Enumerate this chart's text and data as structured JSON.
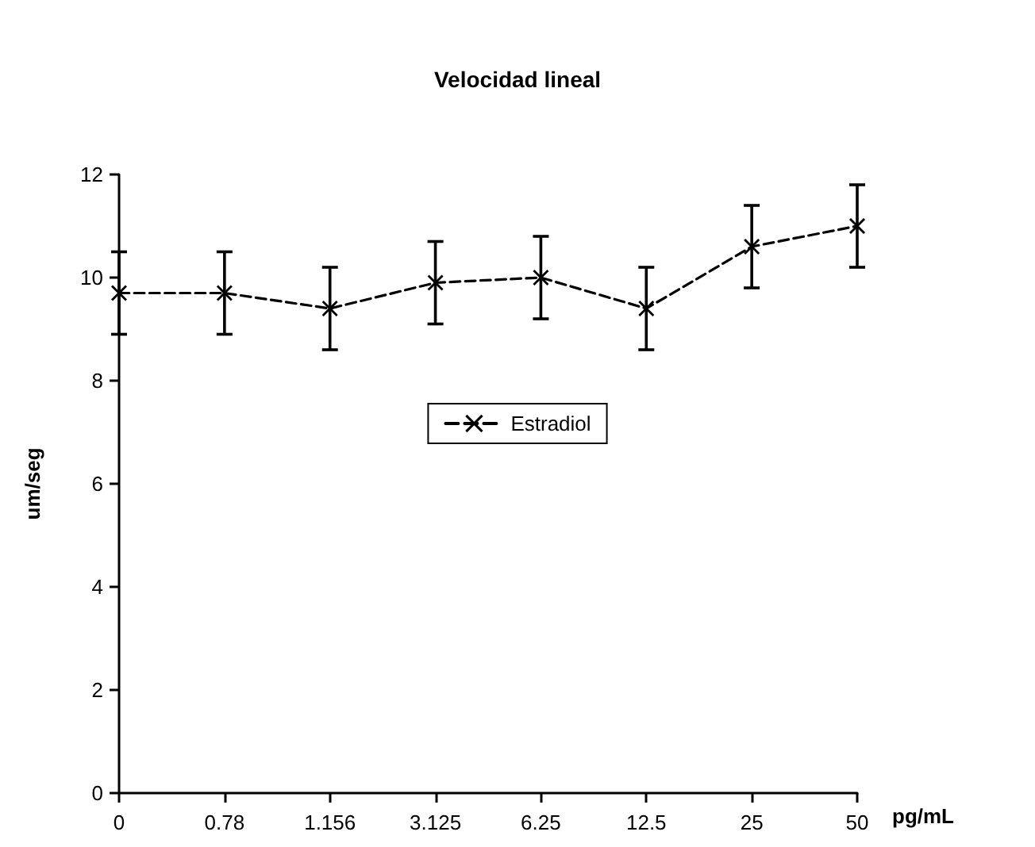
{
  "chart_data": {
    "type": "line",
    "title": "Velocidad lineal",
    "xlabel": "pg/mL",
    "ylabel": "um/seg",
    "categories": [
      "0",
      "0.78",
      "1.156",
      "3.125",
      "6.25",
      "12.5",
      "25",
      "50"
    ],
    "series": [
      {
        "name": "Estradiol",
        "color": "#000000",
        "values": [
          9.7,
          9.7,
          9.4,
          9.9,
          10.0,
          9.4,
          10.6,
          11.0
        ],
        "errors": [
          0.8,
          0.8,
          0.8,
          0.8,
          0.8,
          0.8,
          0.8,
          0.8
        ]
      }
    ],
    "ylim": [
      0,
      12
    ],
    "yticks": [
      0,
      2,
      4,
      6,
      8,
      10,
      12
    ],
    "grid": false,
    "legend": "center",
    "marker": "cross",
    "line_style": "dashed"
  }
}
